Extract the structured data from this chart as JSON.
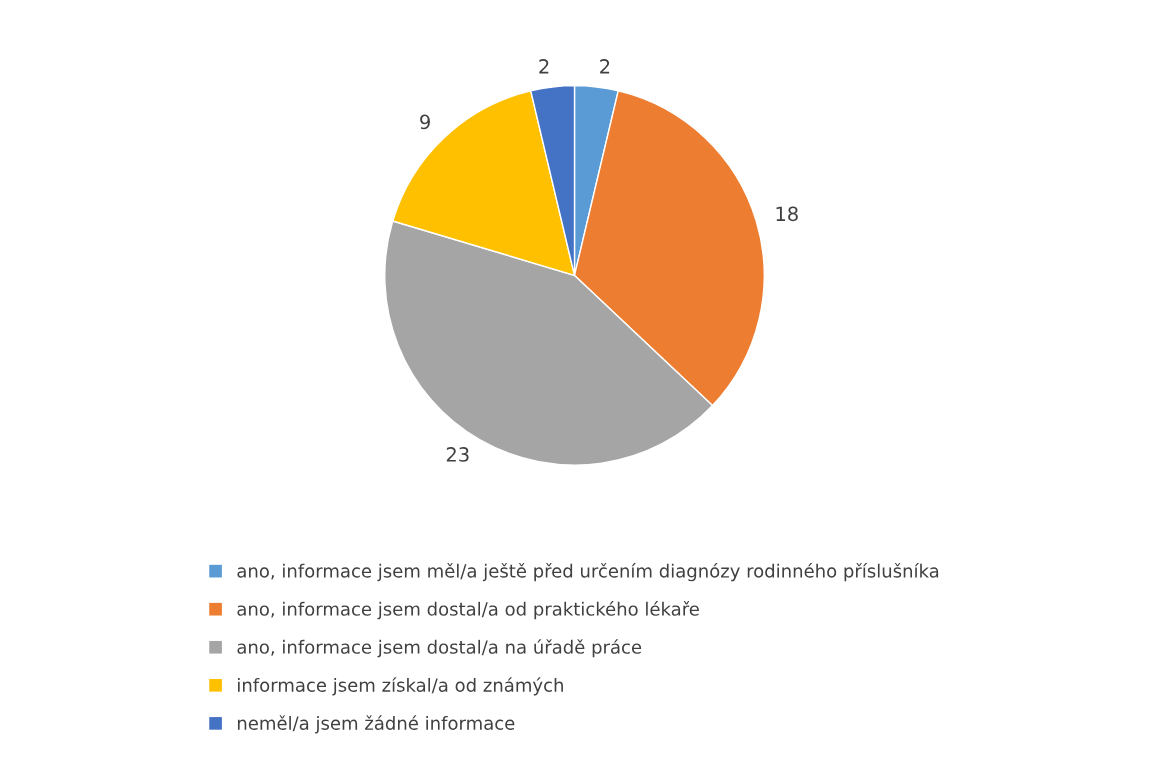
{
  "chart_data": {
    "type": "pie",
    "categories": [
      "ano, informace jsem měl/a ještě před určením diagnózy rodinného příslušníka",
      "ano, informace jsem dostal/a od praktického lékaře",
      "ano, informace jsem dostal/a na úřadě práce",
      "informace jsem získal/a od známých",
      "neměl/a jsem žádné informace"
    ],
    "values": [
      2,
      18,
      23,
      9,
      2
    ],
    "colors": [
      "#5b9bd5",
      "#ed7d31",
      "#a5a5a5",
      "#ffc000",
      "#4472c4"
    ],
    "data_labels": true,
    "legend": "bottom"
  }
}
